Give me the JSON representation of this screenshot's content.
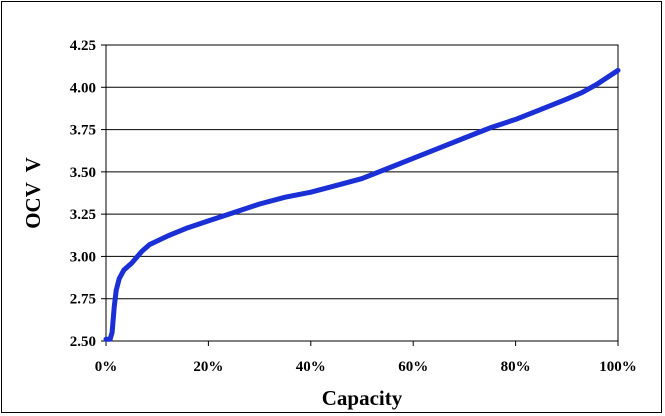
{
  "chart_data": {
    "type": "line",
    "title": "",
    "xlabel": "Capacity",
    "ylabel": "OCV  V",
    "xlim": [
      0,
      100
    ],
    "ylim": [
      2.5,
      4.25
    ],
    "x_ticks": [
      0,
      20,
      40,
      60,
      80,
      100
    ],
    "x_tick_labels": [
      "0%",
      "20%",
      "40%",
      "60%",
      "80%",
      "100%"
    ],
    "y_ticks": [
      2.5,
      2.75,
      3.0,
      3.25,
      3.5,
      3.75,
      4.0,
      4.25
    ],
    "y_tick_labels": [
      "2.50",
      "2.75",
      "3.00",
      "3.25",
      "3.50",
      "3.75",
      "4.00",
      "4.25"
    ],
    "grid": "horizontal",
    "legend": "none",
    "series": [
      {
        "color": "#1a2fd6",
        "points": [
          [
            0.0,
            2.51
          ],
          [
            0.8,
            2.51
          ],
          [
            1.2,
            2.55
          ],
          [
            1.6,
            2.7
          ],
          [
            2.0,
            2.8
          ],
          [
            2.6,
            2.87
          ],
          [
            3.5,
            2.92
          ],
          [
            5,
            2.96
          ],
          [
            7,
            3.03
          ],
          [
            8.5,
            3.07
          ],
          [
            12,
            3.12
          ],
          [
            16,
            3.17
          ],
          [
            20,
            3.21
          ],
          [
            25,
            3.26
          ],
          [
            30,
            3.31
          ],
          [
            35,
            3.35
          ],
          [
            40,
            3.38
          ],
          [
            45,
            3.42
          ],
          [
            50,
            3.46
          ],
          [
            55,
            3.52
          ],
          [
            60,
            3.58
          ],
          [
            65,
            3.64
          ],
          [
            70,
            3.7
          ],
          [
            75,
            3.76
          ],
          [
            80,
            3.81
          ],
          [
            85,
            3.87
          ],
          [
            90,
            3.93
          ],
          [
            93,
            3.97
          ],
          [
            96,
            4.02
          ],
          [
            100,
            4.1
          ]
        ]
      }
    ]
  }
}
